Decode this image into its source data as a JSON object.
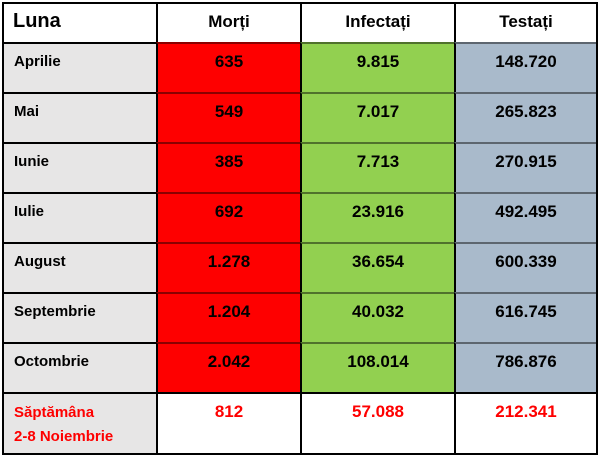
{
  "table": {
    "columns": [
      "Luna",
      "Morți",
      "Infectați",
      "Testați"
    ],
    "rows": [
      {
        "month": "Aprilie",
        "deaths": "635",
        "infected": "9.815",
        "tested": "148.720"
      },
      {
        "month": "Mai",
        "deaths": "549",
        "infected": "7.017",
        "tested": "265.823"
      },
      {
        "month": "Iunie",
        "deaths": "385",
        "infected": "7.713",
        "tested": "270.915"
      },
      {
        "month": "Iulie",
        "deaths": "692",
        "infected": "23.916",
        "tested": "492.495"
      },
      {
        "month": "August",
        "deaths": "1.278",
        "infected": "36.654",
        "tested": "600.339"
      },
      {
        "month": "Septembrie",
        "deaths": "1.204",
        "infected": "40.032",
        "tested": "616.745"
      },
      {
        "month": "Octombrie",
        "deaths": "2.042",
        "infected": "108.014",
        "tested": "786.876"
      }
    ],
    "summary": {
      "label_line1": "Săptămâna",
      "label_line2": "2-8 Noiembrie",
      "deaths": "812",
      "infected": "57.088",
      "tested": "212.341"
    }
  },
  "colors": {
    "deaths-bg": "#fe0000",
    "infected-bg": "#92d050",
    "tested-bg": "#a9bacb",
    "month-bg": "#e7e6e6",
    "summary-text": "#fe0000"
  },
  "chart_data": {
    "type": "table",
    "title": "",
    "columns": [
      "Luna",
      "Morți",
      "Infectați",
      "Testați"
    ],
    "rows": [
      [
        "Aprilie",
        635,
        9815,
        148720
      ],
      [
        "Mai",
        549,
        7017,
        265823
      ],
      [
        "Iunie",
        385,
        7713,
        270915
      ],
      [
        "Iulie",
        692,
        23916,
        492495
      ],
      [
        "August",
        1278,
        36654,
        600339
      ],
      [
        "Septembrie",
        1204,
        40032,
        616745
      ],
      [
        "Octombrie",
        2042,
        108014,
        786876
      ],
      [
        "Săptămâna 2-8 Noiembrie",
        812,
        57088,
        212341
      ]
    ]
  }
}
